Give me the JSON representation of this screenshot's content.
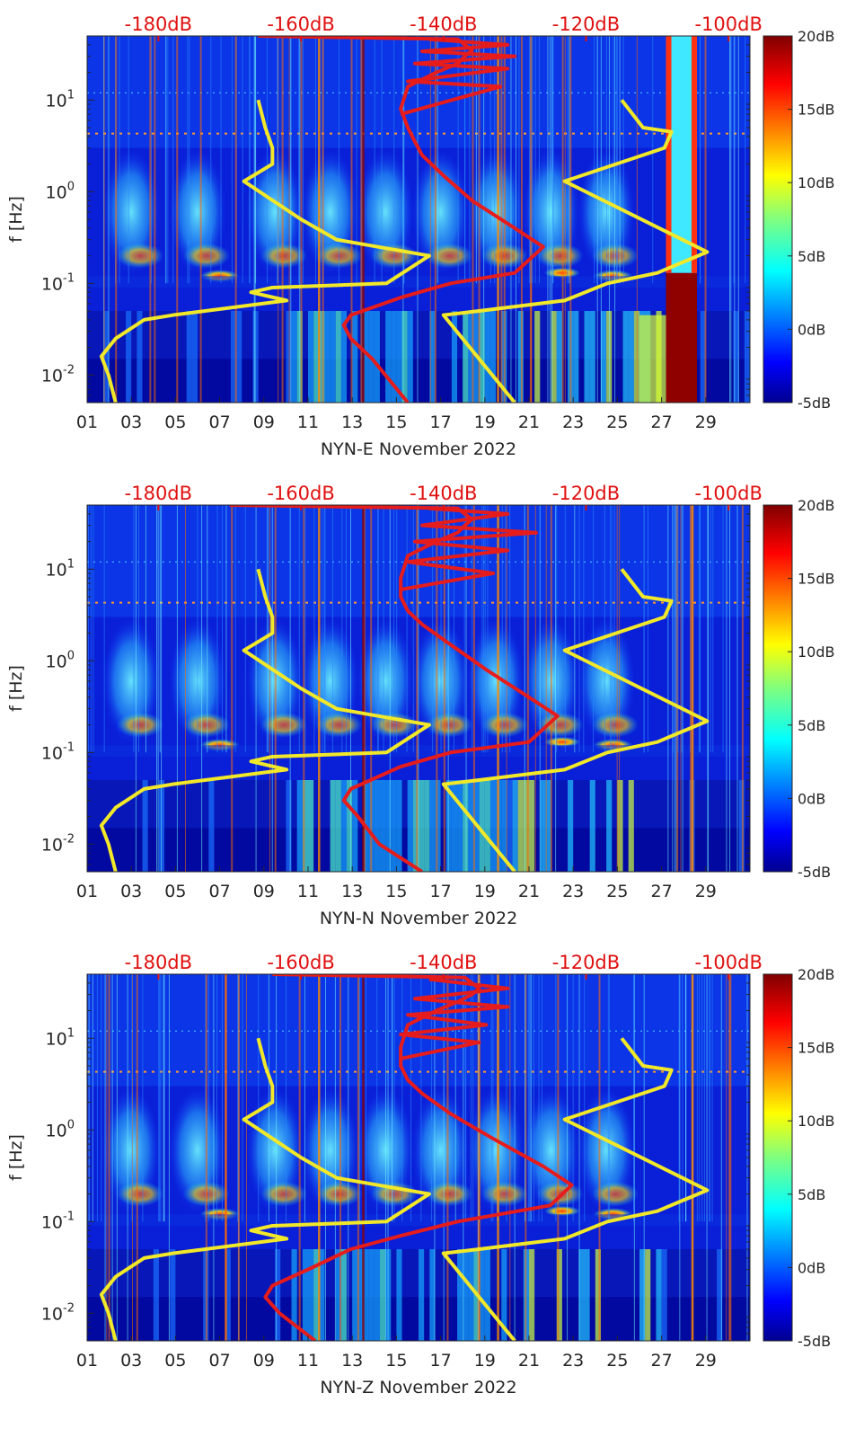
{
  "colors": {
    "noise_model": "#f2e82a",
    "reference": "#e61c1c",
    "top_axis": "#e01010",
    "background": "#00008f"
  },
  "chart_data": [
    {
      "type": "heatmap",
      "station": "NYN-E",
      "xlabel": "NYN-E November 2022",
      "ylabel": "f [Hz]",
      "x_ticks": [
        "01",
        "03",
        "05",
        "07",
        "09",
        "11",
        "13",
        "15",
        "17",
        "19",
        "21",
        "23",
        "25",
        "27",
        "29"
      ],
      "y_ticks": [
        {
          "value": 0.01,
          "base": "10",
          "exp": "-2"
        },
        {
          "value": 0.1,
          "base": "10",
          "exp": "-1"
        },
        {
          "value": 1,
          "base": "10",
          "exp": "0"
        },
        {
          "value": 10,
          "base": "10",
          "exp": "1"
        }
      ],
      "top_ticks": [
        "-180dB",
        "-160dB",
        "-140dB",
        "-120dB",
        "-100dB"
      ],
      "colorbar": {
        "min": -5,
        "max": 20,
        "labels": [
          "20dB",
          "15dB",
          "10dB",
          "5dB",
          "0dB",
          "-5dB"
        ]
      },
      "xlim": [
        1,
        31
      ],
      "ylim": [
        0.005,
        50
      ],
      "top_xlim": [
        -190,
        -97
      ],
      "event_day": 27.2,
      "event_end": 28.6,
      "yellow_curve": [
        [
          -200,
          0.0005
        ],
        [
          -186,
          0.005
        ],
        [
          -187,
          0.01
        ],
        [
          -188,
          0.016
        ],
        [
          -186,
          0.025
        ],
        [
          -182,
          0.04
        ],
        [
          -178,
          0.045
        ],
        [
          -162,
          0.065
        ],
        [
          -167,
          0.08
        ],
        [
          -164,
          0.09
        ],
        [
          -148,
          0.1
        ],
        [
          -142,
          0.2
        ],
        [
          -155,
          0.3
        ],
        [
          -160,
          0.5
        ],
        [
          -168,
          1.3
        ],
        [
          -164,
          2
        ],
        [
          -164,
          3
        ],
        [
          -165,
          5
        ],
        [
          -166,
          10
        ],
        [
          -115,
          10
        ],
        [
          -112,
          5
        ],
        [
          -108,
          4.5
        ],
        [
          -109,
          3
        ],
        [
          -123,
          1.3
        ],
        [
          -103,
          0.22
        ],
        [
          -110,
          0.13
        ],
        [
          -117,
          0.1
        ],
        [
          -123,
          0.065
        ],
        [
          -135,
          0.05
        ],
        [
          -140,
          0.045
        ],
        [
          -130,
          0.005
        ]
      ],
      "red_curve": [
        [
          -145,
          0.005
        ],
        [
          -150,
          0.015
        ],
        [
          -153,
          0.025
        ],
        [
          -154,
          0.035
        ],
        [
          -153,
          0.045
        ],
        [
          -146,
          0.07
        ],
        [
          -139,
          0.1
        ],
        [
          -130,
          0.13
        ],
        [
          -126,
          0.25
        ],
        [
          -130,
          0.4
        ],
        [
          -136,
          0.8
        ],
        [
          -140,
          1.5
        ],
        [
          -143,
          2.5
        ],
        [
          -144,
          3.5
        ],
        [
          -145,
          5
        ],
        [
          -146,
          8
        ],
        [
          -145,
          14
        ],
        [
          -141,
          20
        ],
        [
          -138,
          25
        ],
        [
          -137,
          30
        ],
        [
          -136,
          35
        ],
        [
          -137,
          40
        ],
        [
          -138,
          46
        ],
        [
          -166,
          50
        ]
      ],
      "red_zigzag": [
        [
          -146,
          7
        ],
        [
          -132,
          14
        ],
        [
          -145,
          16
        ],
        [
          -131,
          22
        ],
        [
          -144,
          25
        ],
        [
          -130,
          30
        ],
        [
          -143,
          34
        ],
        [
          -131,
          40
        ],
        [
          -142,
          46
        ]
      ]
    },
    {
      "type": "heatmap",
      "station": "NYN-N",
      "xlabel": "NYN-N November 2022",
      "ylabel": "f [Hz]",
      "x_ticks": [
        "01",
        "03",
        "05",
        "07",
        "09",
        "11",
        "13",
        "15",
        "17",
        "19",
        "21",
        "23",
        "25",
        "27",
        "29"
      ],
      "y_ticks": [
        {
          "value": 0.01,
          "base": "10",
          "exp": "-2"
        },
        {
          "value": 0.1,
          "base": "10",
          "exp": "-1"
        },
        {
          "value": 1,
          "base": "10",
          "exp": "0"
        },
        {
          "value": 10,
          "base": "10",
          "exp": "1"
        }
      ],
      "top_ticks": [
        "-180dB",
        "-160dB",
        "-140dB",
        "-120dB",
        "-100dB"
      ],
      "colorbar": {
        "min": -5,
        "max": 20,
        "labels": [
          "20dB",
          "15dB",
          "10dB",
          "5dB",
          "0dB",
          "-5dB"
        ]
      },
      "xlim": [
        1,
        31
      ],
      "ylim": [
        0.005,
        50
      ],
      "top_xlim": [
        -190,
        -97
      ],
      "event_day": null,
      "event_end": null,
      "yellow_curve": [
        [
          -200,
          0.0005
        ],
        [
          -186,
          0.005
        ],
        [
          -187,
          0.01
        ],
        [
          -188,
          0.016
        ],
        [
          -186,
          0.025
        ],
        [
          -182,
          0.04
        ],
        [
          -178,
          0.045
        ],
        [
          -162,
          0.065
        ],
        [
          -167,
          0.08
        ],
        [
          -164,
          0.09
        ],
        [
          -148,
          0.1
        ],
        [
          -142,
          0.2
        ],
        [
          -155,
          0.3
        ],
        [
          -160,
          0.5
        ],
        [
          -168,
          1.3
        ],
        [
          -164,
          2
        ],
        [
          -164,
          3
        ],
        [
          -165,
          5
        ],
        [
          -166,
          10
        ],
        [
          -115,
          10
        ],
        [
          -112,
          5
        ],
        [
          -108,
          4.5
        ],
        [
          -109,
          3
        ],
        [
          -123,
          1.3
        ],
        [
          -103,
          0.22
        ],
        [
          -110,
          0.13
        ],
        [
          -117,
          0.1
        ],
        [
          -123,
          0.065
        ],
        [
          -135,
          0.05
        ],
        [
          -140,
          0.045
        ],
        [
          -130,
          0.005
        ]
      ],
      "red_curve": [
        [
          -143,
          0.005
        ],
        [
          -149,
          0.01
        ],
        [
          -152,
          0.02
        ],
        [
          -154,
          0.03
        ],
        [
          -153,
          0.04
        ],
        [
          -146,
          0.07
        ],
        [
          -139,
          0.1
        ],
        [
          -128,
          0.13
        ],
        [
          -124,
          0.25
        ],
        [
          -128,
          0.4
        ],
        [
          -134,
          0.8
        ],
        [
          -139,
          1.5
        ],
        [
          -143,
          2.5
        ],
        [
          -145,
          3.5
        ],
        [
          -146,
          5
        ],
        [
          -146,
          8
        ],
        [
          -145,
          14
        ],
        [
          -141,
          20
        ],
        [
          -138,
          25
        ],
        [
          -137,
          30
        ],
        [
          -136,
          35
        ],
        [
          -137,
          40
        ],
        [
          -138,
          46
        ],
        [
          -170,
          50
        ]
      ],
      "red_zigzag": [
        [
          -146,
          6
        ],
        [
          -133,
          9
        ],
        [
          -145,
          12
        ],
        [
          -131,
          16
        ],
        [
          -144,
          20
        ],
        [
          -127,
          25
        ],
        [
          -143,
          30
        ],
        [
          -131,
          40
        ],
        [
          -142,
          46
        ]
      ]
    },
    {
      "type": "heatmap",
      "station": "NYN-Z",
      "xlabel": "NYN-Z November 2022",
      "ylabel": "f [Hz]",
      "x_ticks": [
        "01",
        "03",
        "05",
        "07",
        "09",
        "11",
        "13",
        "15",
        "17",
        "19",
        "21",
        "23",
        "25",
        "27",
        "29"
      ],
      "y_ticks": [
        {
          "value": 0.01,
          "base": "10",
          "exp": "-2"
        },
        {
          "value": 0.1,
          "base": "10",
          "exp": "-1"
        },
        {
          "value": 1,
          "base": "10",
          "exp": "0"
        },
        {
          "value": 10,
          "base": "10",
          "exp": "1"
        }
      ],
      "top_ticks": [
        "-180dB",
        "-160dB",
        "-140dB",
        "-120dB",
        "-100dB"
      ],
      "colorbar": {
        "min": -5,
        "max": 20,
        "labels": [
          "20dB",
          "15dB",
          "10dB",
          "5dB",
          "0dB",
          "-5dB"
        ]
      },
      "xlim": [
        1,
        31
      ],
      "ylim": [
        0.005,
        50
      ],
      "top_xlim": [
        -190,
        -97
      ],
      "event_day": null,
      "event_end": null,
      "yellow_curve": [
        [
          -200,
          0.0005
        ],
        [
          -186,
          0.005
        ],
        [
          -187,
          0.01
        ],
        [
          -188,
          0.016
        ],
        [
          -186,
          0.025
        ],
        [
          -182,
          0.04
        ],
        [
          -178,
          0.045
        ],
        [
          -162,
          0.065
        ],
        [
          -167,
          0.08
        ],
        [
          -164,
          0.09
        ],
        [
          -148,
          0.1
        ],
        [
          -142,
          0.2
        ],
        [
          -155,
          0.3
        ],
        [
          -160,
          0.5
        ],
        [
          -168,
          1.3
        ],
        [
          -164,
          2
        ],
        [
          -164,
          3
        ],
        [
          -165,
          5
        ],
        [
          -166,
          10
        ],
        [
          -115,
          10
        ],
        [
          -112,
          5
        ],
        [
          -108,
          4.5
        ],
        [
          -109,
          3
        ],
        [
          -123,
          1.3
        ],
        [
          -103,
          0.22
        ],
        [
          -110,
          0.13
        ],
        [
          -117,
          0.1
        ],
        [
          -123,
          0.065
        ],
        [
          -135,
          0.05
        ],
        [
          -140,
          0.045
        ],
        [
          -130,
          0.005
        ]
      ],
      "red_curve": [
        [
          -158,
          0.005
        ],
        [
          -163,
          0.01
        ],
        [
          -165,
          0.015
        ],
        [
          -164,
          0.02
        ],
        [
          -159,
          0.03
        ],
        [
          -153,
          0.05
        ],
        [
          -146,
          0.07
        ],
        [
          -138,
          0.1
        ],
        [
          -125,
          0.15
        ],
        [
          -122,
          0.25
        ],
        [
          -126,
          0.4
        ],
        [
          -133,
          0.8
        ],
        [
          -139,
          1.5
        ],
        [
          -143,
          2.5
        ],
        [
          -145,
          3.5
        ],
        [
          -146,
          5
        ],
        [
          -146,
          8
        ],
        [
          -145,
          14
        ],
        [
          -141,
          20
        ],
        [
          -138,
          25
        ],
        [
          -136,
          30
        ],
        [
          -135,
          35
        ],
        [
          -136,
          40
        ],
        [
          -137,
          46
        ],
        [
          -164,
          50
        ]
      ],
      "red_zigzag": [
        [
          -146,
          6
        ],
        [
          -135,
          9
        ],
        [
          -146,
          11
        ],
        [
          -134,
          14
        ],
        [
          -145,
          18
        ],
        [
          -131,
          22
        ],
        [
          -144,
          27
        ],
        [
          -131,
          35
        ],
        [
          -142,
          44
        ]
      ]
    }
  ]
}
